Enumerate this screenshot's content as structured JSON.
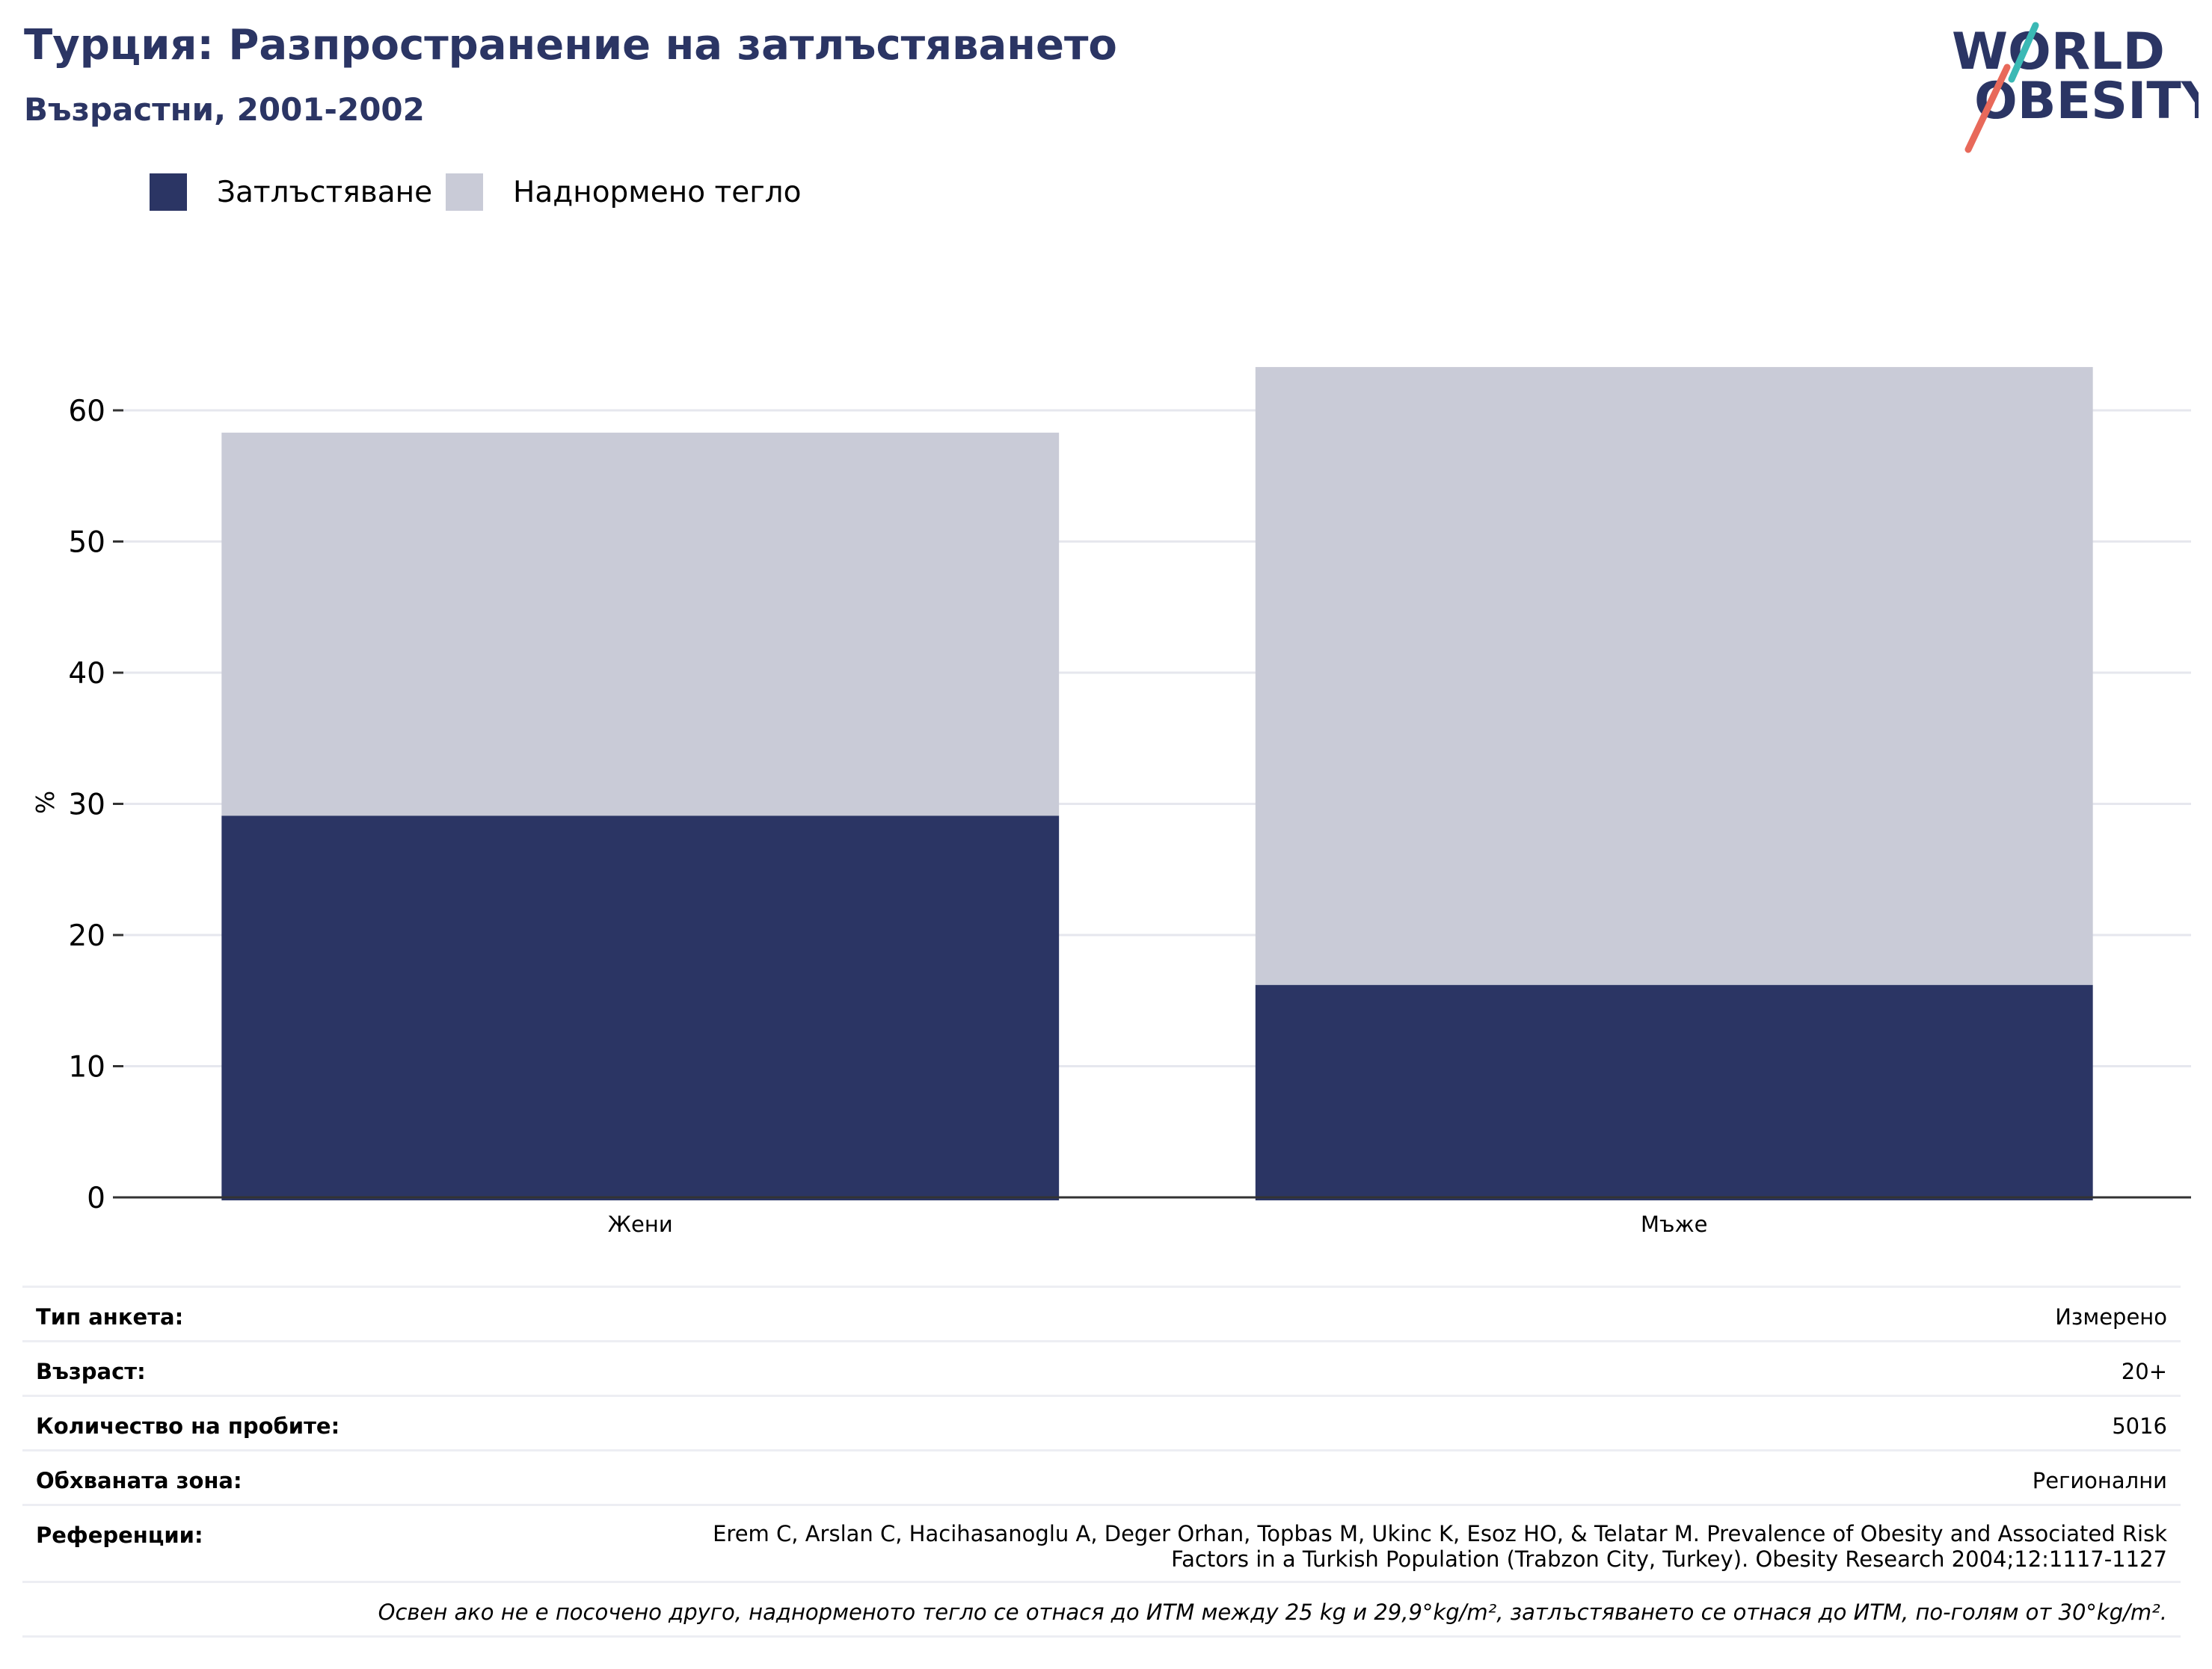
{
  "header": {
    "title": "Турция: Разпространение на затлъстяването",
    "subtitle": "Възрастни, 2001-2002"
  },
  "logo": {
    "line1": "WORLD",
    "line2": "OBESITY",
    "colors": {
      "text": "#2b3564",
      "slash_top": "#3bb9b5",
      "slash_bottom": "#e8695a"
    }
  },
  "legend": {
    "items": [
      {
        "label": "Затлъстяване",
        "color": "#2b3564"
      },
      {
        "label": "Наднормено тегло",
        "color": "#c9cbd7"
      }
    ]
  },
  "chart_data": {
    "type": "bar",
    "stacked": true,
    "categories": [
      "Жени",
      "Мъже"
    ],
    "series": [
      {
        "name": "Затлъстяване",
        "values": [
          29.1,
          16.2
        ],
        "color": "#2b3564"
      },
      {
        "name": "Наднормено тегло",
        "values": [
          29.2,
          47.1
        ],
        "color": "#c9cbd7"
      }
    ],
    "ylabel": "%",
    "yticks": [
      0,
      10,
      20,
      30,
      40,
      50,
      60
    ],
    "ylim": [
      0,
      65
    ],
    "grid": true
  },
  "meta": {
    "rows": [
      {
        "label": "Тип анкета:",
        "value": "Измерено"
      },
      {
        "label": "Възраст:",
        "value": "20+"
      },
      {
        "label": "Количество на пробите:",
        "value": "5016"
      },
      {
        "label": "Обхваната зона:",
        "value": "Регионални"
      }
    ],
    "reference": {
      "label": "Референции:",
      "line1": "Erem C, Arslan C, Hacihasanoglu A, Deger Orhan, Topbas M, Ukinc K, Esoz HO, & Telatar M. Prevalence of Obesity and Associated Risk",
      "line2": "Factors in a Turkish Population (Trabzon City, Turkey). Obesity Research 2004;12:1117-1127"
    },
    "note": "Освен ако не е посочено друго, наднорменото тегло се отнася до ИТМ между 25 kg и 29,9°kg/m², затлъстяването се отнася до ИТМ, по-голям от 30°kg/m²."
  }
}
